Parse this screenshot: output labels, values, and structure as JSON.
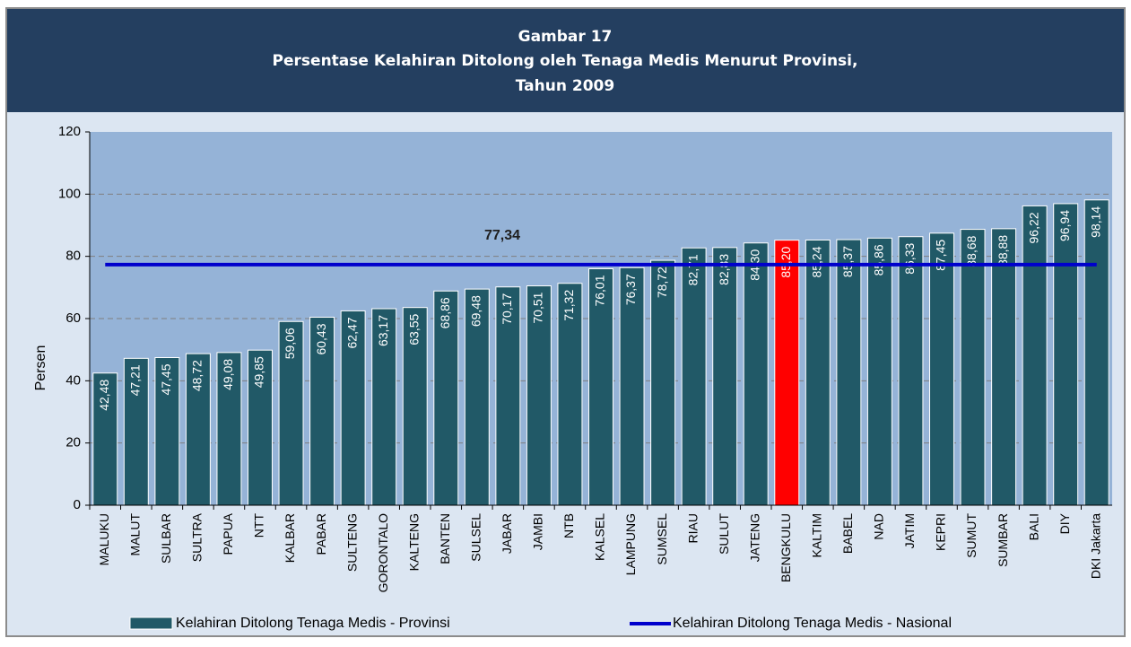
{
  "chart_data": {
    "type": "bar",
    "title": [
      "Gambar 17",
      "Persentase Kelahiran Ditolong oleh Tenaga Medis Menurut Provinsi,",
      "Tahun 2009"
    ],
    "y_label": "Persen",
    "categories": [
      "MALUKU",
      "MALUT",
      "SULBAR",
      "SULTRA",
      "PAPUA",
      "NTT",
      "KALBAR",
      "PABAR",
      "SULTENG",
      "GORONTALO",
      "KALTENG",
      "BANTEN",
      "SULSEL",
      "JABAR",
      "JAMBI",
      "NTB",
      "KALSEL",
      "LAMPUNG",
      "SUMSEL",
      "RIAU",
      "SULUT",
      "JATENG",
      "BENGKULU",
      "KALTIM",
      "BABEL",
      "NAD",
      "JATIM",
      "KEPRI",
      "SUMUT",
      "SUMBAR",
      "BALI",
      "DIY",
      "DKI Jakarta"
    ],
    "series": [
      {
        "name": "Kelahiran Ditolong Tenaga Medis - Provinsi",
        "color": "#215967",
        "colors": [
          "#215967",
          "#215967",
          "#215967",
          "#215967",
          "#215967",
          "#215967",
          "#215967",
          "#215967",
          "#215967",
          "#215967",
          "#215967",
          "#215967",
          "#215967",
          "#215967",
          "#215967",
          "#215967",
          "#215967",
          "#215967",
          "#215967",
          "#215967",
          "#215967",
          "#215967",
          "#ff0000",
          "#215967",
          "#215967",
          "#215967",
          "#215967",
          "#215967",
          "#215967",
          "#215967",
          "#215967",
          "#215967",
          "#215967"
        ],
        "values": [
          42.48,
          47.21,
          47.45,
          48.72,
          49.08,
          49.85,
          59.06,
          60.43,
          62.47,
          63.17,
          63.55,
          68.86,
          69.48,
          70.17,
          70.51,
          71.32,
          76.01,
          76.37,
          78.72,
          82.71,
          82.83,
          84.3,
          85.2,
          85.24,
          85.37,
          85.86,
          86.33,
          87.45,
          88.68,
          88.88,
          96.22,
          96.94,
          98.14
        ],
        "value_labels": [
          "42,48",
          "47,21",
          "47,45",
          "48,72",
          "49,08",
          "49,85",
          "59,06",
          "60,43",
          "62,47",
          "63,17",
          "63,55",
          "68,86",
          "69,48",
          "70,17",
          "70,51",
          "71,32",
          "76,01",
          "76,37",
          "78,72",
          "82,71",
          "82,83",
          "84,30",
          "85,20",
          "85,24",
          "85,37",
          "85,86",
          "86,33",
          "87,45",
          "88,68",
          "88,88",
          "96,22",
          "96,94",
          "98,14"
        ]
      },
      {
        "name": "Kelahiran Ditolong Tenaga Medis - Nasional",
        "type": "line",
        "color": "#0000cc",
        "value": 77.34,
        "value_label": "77,34"
      }
    ],
    "ylim": [
      0,
      120
    ],
    "yticks": [
      0,
      20,
      40,
      60,
      80,
      100,
      120
    ],
    "grid": true
  }
}
